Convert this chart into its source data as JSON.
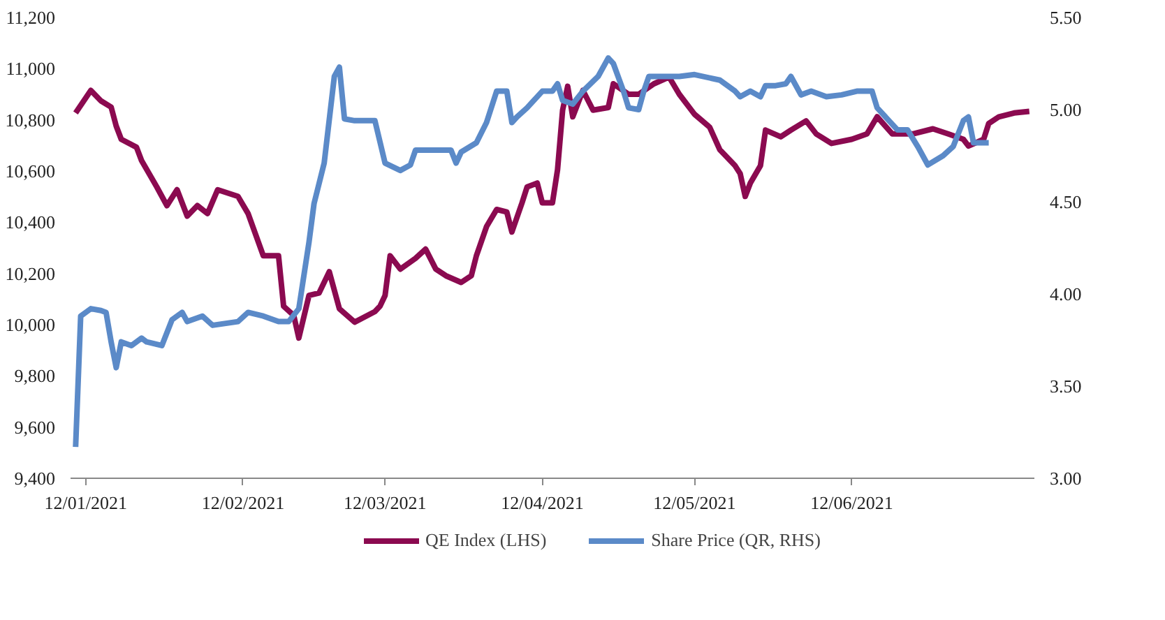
{
  "chart_data": {
    "type": "line",
    "legend": "bottom",
    "grid": false,
    "marker": "none",
    "line_style": "solid",
    "xlim": [
      "2021-01-09",
      "2021-07-18"
    ],
    "xticks": [
      {
        "value": "2021-01-12",
        "label": "12/01/2021"
      },
      {
        "value": "2021-02-12",
        "label": "12/02/2021"
      },
      {
        "value": "2021-03-12",
        "label": "12/03/2021"
      },
      {
        "value": "2021-04-12",
        "label": "12/04/2021"
      },
      {
        "value": "2021-05-12",
        "label": "12/05/2021"
      },
      {
        "value": "2021-06-12",
        "label": "12/06/2021"
      }
    ],
    "ylim": [
      9400,
      11200
    ],
    "yticks": [
      {
        "value": 9400,
        "label": "9,400"
      },
      {
        "value": 9600,
        "label": "9,600"
      },
      {
        "value": 9800,
        "label": "9,800"
      },
      {
        "value": 10000,
        "label": "10,000"
      },
      {
        "value": 10200,
        "label": "10,200"
      },
      {
        "value": 10400,
        "label": "10,400"
      },
      {
        "value": 10600,
        "label": "10,600"
      },
      {
        "value": 10800,
        "label": "10,800"
      },
      {
        "value": 11000,
        "label": "11,000"
      },
      {
        "value": 11200,
        "label": "11,200"
      }
    ],
    "y2lim": [
      3.0,
      5.5
    ],
    "y2ticks": [
      {
        "value": 3.0,
        "label": "3.00"
      },
      {
        "value": 3.5,
        "label": "3.50"
      },
      {
        "value": 4.0,
        "label": "4.00"
      },
      {
        "value": 4.5,
        "label": "4.50"
      },
      {
        "value": 5.0,
        "label": "5.00"
      },
      {
        "value": 5.5,
        "label": "5.50"
      }
    ],
    "series": [
      {
        "name": "QE Index (LHS)",
        "color": "#8b0a50",
        "x": [
          "2021-01-10",
          "2021-01-13",
          "2021-01-15",
          "2021-01-17",
          "2021-01-18",
          "2021-01-19",
          "2021-01-22",
          "2021-01-23",
          "2021-01-26",
          "2021-01-28",
          "2021-01-30",
          "2021-02-01",
          "2021-02-03",
          "2021-02-05",
          "2021-02-07",
          "2021-02-11",
          "2021-02-13",
          "2021-02-16",
          "2021-02-19",
          "2021-02-20",
          "2021-02-22",
          "2021-02-23",
          "2021-02-25",
          "2021-02-27",
          "2021-03-01",
          "2021-03-03",
          "2021-03-06",
          "2021-03-10",
          "2021-03-11",
          "2021-03-12",
          "2021-03-13",
          "2021-03-15",
          "2021-03-18",
          "2021-03-20",
          "2021-03-22",
          "2021-03-24",
          "2021-03-27",
          "2021-03-29",
          "2021-03-30",
          "2021-04-01",
          "2021-04-03",
          "2021-04-05",
          "2021-04-06",
          "2021-04-08",
          "2021-04-09",
          "2021-04-11",
          "2021-04-12",
          "2021-04-14",
          "2021-04-15",
          "2021-04-16",
          "2021-04-17",
          "2021-04-18",
          "2021-04-20",
          "2021-04-22",
          "2021-04-25",
          "2021-04-26",
          "2021-04-29",
          "2021-05-01",
          "2021-05-04",
          "2021-05-07",
          "2021-05-09",
          "2021-05-12",
          "2021-05-15",
          "2021-05-17",
          "2021-05-20",
          "2021-05-21",
          "2021-05-22",
          "2021-05-23",
          "2021-05-25",
          "2021-05-26",
          "2021-05-29",
          "2021-05-31",
          "2021-06-03",
          "2021-06-05",
          "2021-06-08",
          "2021-06-12",
          "2021-06-15",
          "2021-06-17",
          "2021-06-20",
          "2021-06-24",
          "2021-06-28",
          "2021-07-01",
          "2021-07-04",
          "2021-07-05",
          "2021-07-08",
          "2021-07-09",
          "2021-07-11",
          "2021-07-14",
          "2021-07-17"
        ],
        "values": [
          10827,
          10915,
          10874,
          10850,
          10776,
          10724,
          10693,
          10641,
          10538,
          10465,
          10527,
          10424,
          10465,
          10434,
          10527,
          10501,
          10434,
          10269,
          10269,
          10072,
          10036,
          9948,
          10114,
          10124,
          10207,
          10062,
          10010,
          10051,
          10072,
          10114,
          10269,
          10217,
          10259,
          10295,
          10217,
          10191,
          10165,
          10191,
          10269,
          10383,
          10450,
          10440,
          10362,
          10476,
          10538,
          10553,
          10476,
          10476,
          10605,
          10838,
          10931,
          10812,
          10915,
          10838,
          10848,
          10941,
          10900,
          10900,
          10941,
          10967,
          10900,
          10822,
          10771,
          10683,
          10621,
          10590,
          10501,
          10553,
          10621,
          10760,
          10734,
          10760,
          10796,
          10745,
          10708,
          10724,
          10745,
          10812,
          10745,
          10745,
          10765,
          10745,
          10724,
          10698,
          10724,
          10786,
          10812,
          10827,
          10833
        ]
      },
      {
        "name": "Share Price (QR, RHS)",
        "color": "#5b8ac8",
        "axis": "y2",
        "x": [
          "2021-01-10",
          "2021-01-11",
          "2021-01-13",
          "2021-01-15",
          "2021-01-16",
          "2021-01-17",
          "2021-01-18",
          "2021-01-19",
          "2021-01-21",
          "2021-01-23",
          "2021-01-24",
          "2021-01-27",
          "2021-01-29",
          "2021-01-31",
          "2021-02-01",
          "2021-02-04",
          "2021-02-06",
          "2021-02-11",
          "2021-02-13",
          "2021-02-16",
          "2021-02-19",
          "2021-02-21",
          "2021-02-23",
          "2021-02-25",
          "2021-02-26",
          "2021-02-28",
          "2021-03-02",
          "2021-03-03",
          "2021-03-04",
          "2021-03-06",
          "2021-03-10",
          "2021-03-12",
          "2021-03-15",
          "2021-03-17",
          "2021-03-18",
          "2021-03-22",
          "2021-03-25",
          "2021-03-26",
          "2021-03-27",
          "2021-03-30",
          "2021-04-01",
          "2021-04-03",
          "2021-04-05",
          "2021-04-06",
          "2021-04-07",
          "2021-04-09",
          "2021-04-12",
          "2021-04-14",
          "2021-04-15",
          "2021-04-16",
          "2021-04-18",
          "2021-04-20",
          "2021-04-23",
          "2021-04-25",
          "2021-04-26",
          "2021-04-28",
          "2021-04-29",
          "2021-05-01",
          "2021-05-02",
          "2021-05-03",
          "2021-05-09",
          "2021-05-12",
          "2021-05-17",
          "2021-05-20",
          "2021-05-21",
          "2021-05-23",
          "2021-05-25",
          "2021-05-26",
          "2021-05-28",
          "2021-05-30",
          "2021-05-31",
          "2021-06-02",
          "2021-06-04",
          "2021-06-07",
          "2021-06-10",
          "2021-06-13",
          "2021-06-16",
          "2021-06-17",
          "2021-06-21",
          "2021-06-23",
          "2021-06-25",
          "2021-06-27",
          "2021-06-30",
          "2021-07-02",
          "2021-07-04",
          "2021-07-05",
          "2021-07-06",
          "2021-07-09"
        ],
        "values": [
          3.17,
          3.88,
          3.92,
          3.91,
          3.9,
          3.74,
          3.6,
          3.74,
          3.72,
          3.76,
          3.74,
          3.72,
          3.86,
          3.9,
          3.85,
          3.88,
          3.83,
          3.85,
          3.9,
          3.88,
          3.85,
          3.85,
          3.92,
          4.28,
          4.49,
          4.71,
          5.18,
          5.23,
          4.95,
          4.94,
          4.94,
          4.71,
          4.67,
          4.7,
          4.78,
          4.78,
          4.78,
          4.71,
          4.77,
          4.82,
          4.93,
          5.1,
          5.1,
          4.93,
          4.96,
          5.01,
          5.1,
          5.1,
          5.14,
          5.05,
          5.03,
          5.1,
          5.18,
          5.28,
          5.25,
          5.1,
          5.01,
          5.0,
          5.1,
          5.18,
          5.18,
          5.19,
          5.16,
          5.1,
          5.07,
          5.1,
          5.07,
          5.13,
          5.13,
          5.14,
          5.18,
          5.08,
          5.1,
          5.07,
          5.08,
          5.1,
          5.1,
          5.01,
          4.89,
          4.89,
          4.8,
          4.7,
          4.75,
          4.8,
          4.94,
          4.96,
          4.82,
          4.82
        ]
      }
    ]
  }
}
